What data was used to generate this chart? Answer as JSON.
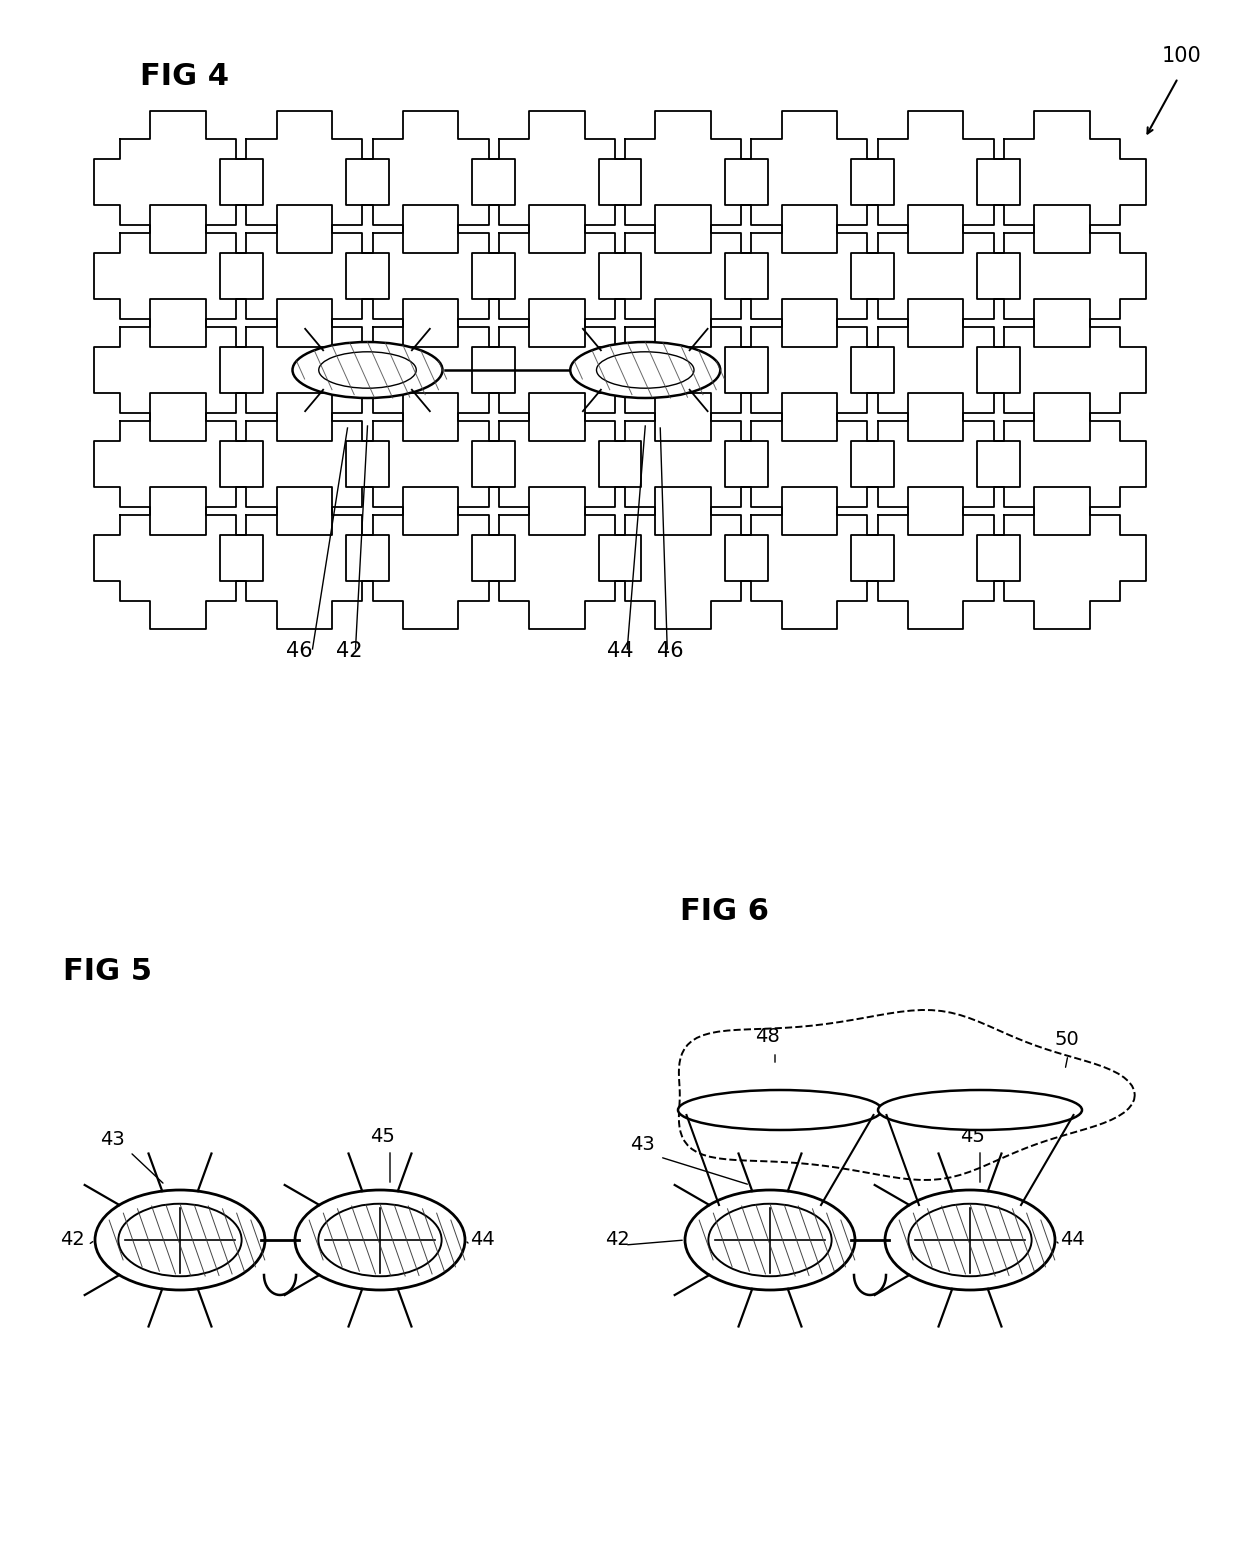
{
  "fig4_label": "FIG 4",
  "fig5_label": "FIG 5",
  "fig6_label": "FIG 6",
  "label_100": "100",
  "label_46a": "46",
  "label_42": "42",
  "label_44": "44",
  "label_46b": "46",
  "label_43a": "43",
  "label_45a": "45",
  "label_42a": "42",
  "label_44a": "44",
  "label_43b": "43",
  "label_45b": "45",
  "label_42b": "42",
  "label_44b": "44",
  "label_48": "48",
  "label_50": "50",
  "bg_color": "#ffffff",
  "line_color": "#000000"
}
